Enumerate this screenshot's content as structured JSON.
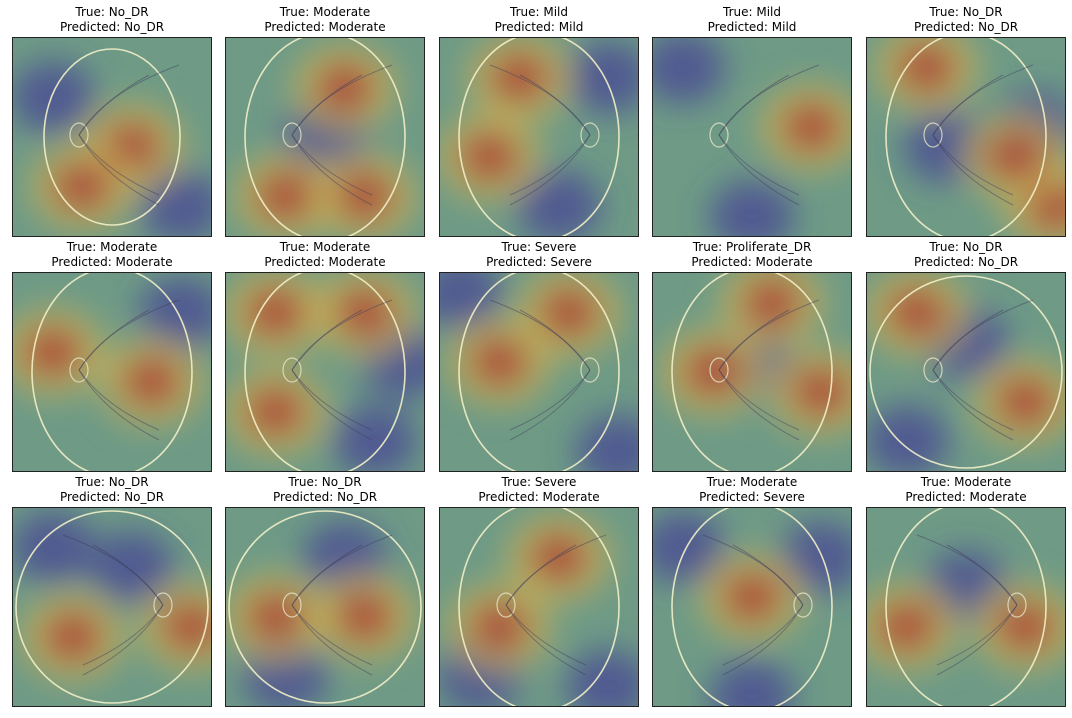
{
  "figure": {
    "true_prefix": "True: ",
    "pred_prefix": "Predicted: ",
    "panels": [
      {
        "true": "No_DR",
        "predicted": "No_DR",
        "fundus": "circle-small",
        "disc": "left",
        "hot": [
          [
            0.6,
            0.55
          ],
          [
            0.35,
            0.75
          ]
        ],
        "cool": [
          [
            0.85,
            0.85
          ],
          [
            0.2,
            0.3
          ]
        ]
      },
      {
        "true": "Moderate",
        "predicted": "Moderate",
        "fundus": "oval",
        "disc": "left",
        "hot": [
          [
            0.6,
            0.25
          ],
          [
            0.3,
            0.8
          ],
          [
            0.7,
            0.8
          ]
        ],
        "cool": [
          [
            0.5,
            0.5
          ]
        ]
      },
      {
        "true": "Mild",
        "predicted": "Mild",
        "fundus": "oval",
        "disc": "right",
        "hot": [
          [
            0.4,
            0.2
          ],
          [
            0.25,
            0.6
          ]
        ],
        "cool": [
          [
            0.6,
            0.85
          ],
          [
            0.85,
            0.2
          ]
        ]
      },
      {
        "true": "Mild",
        "predicted": "Mild",
        "fundus": "square",
        "disc": "left",
        "hot": [
          [
            0.8,
            0.45
          ]
        ],
        "cool": [
          [
            0.15,
            0.15
          ],
          [
            0.5,
            0.9
          ]
        ]
      },
      {
        "true": "No_DR",
        "predicted": "No_DR",
        "fundus": "oval",
        "disc": "left",
        "hot": [
          [
            0.3,
            0.15
          ],
          [
            0.95,
            0.85
          ],
          [
            0.75,
            0.6
          ]
        ],
        "cool": [
          [
            0.4,
            0.55
          ],
          [
            0.85,
            0.45
          ]
        ]
      },
      {
        "true": "Moderate",
        "predicted": "Moderate",
        "fundus": "oval",
        "disc": "left",
        "hot": [
          [
            0.2,
            0.4
          ],
          [
            0.7,
            0.55
          ]
        ],
        "cool": [
          [
            0.85,
            0.2
          ]
        ]
      },
      {
        "true": "Moderate",
        "predicted": "Moderate",
        "fundus": "oval",
        "disc": "left",
        "hot": [
          [
            0.25,
            0.7
          ],
          [
            0.7,
            0.2
          ],
          [
            0.25,
            0.2
          ]
        ],
        "cool": [
          [
            0.9,
            0.45
          ],
          [
            0.75,
            0.85
          ]
        ]
      },
      {
        "true": "Severe",
        "predicted": "Severe",
        "fundus": "oval",
        "disc": "right",
        "hot": [
          [
            0.3,
            0.45
          ],
          [
            0.65,
            0.2
          ]
        ],
        "cool": [
          [
            0.1,
            0.1
          ],
          [
            0.9,
            0.9
          ]
        ]
      },
      {
        "true": "Proliferate_DR",
        "predicted": "Moderate",
        "fundus": "oval",
        "disc": "left",
        "hot": [
          [
            0.3,
            0.5
          ],
          [
            0.85,
            0.6
          ],
          [
            0.6,
            0.15
          ]
        ],
        "cool": [
          [
            0.5,
            0.45
          ]
        ]
      },
      {
        "true": "No_DR",
        "predicted": "No_DR",
        "fundus": "circle",
        "disc": "left",
        "hot": [
          [
            0.8,
            0.65
          ],
          [
            0.25,
            0.2
          ]
        ],
        "cool": [
          [
            0.5,
            0.35
          ],
          [
            0.2,
            0.85
          ]
        ]
      },
      {
        "true": "No_DR",
        "predicted": "No_DR",
        "fundus": "circle",
        "disc": "right",
        "hot": [
          [
            0.3,
            0.65
          ],
          [
            0.9,
            0.6
          ]
        ],
        "cool": [
          [
            0.6,
            0.3
          ],
          [
            0.2,
            0.2
          ]
        ]
      },
      {
        "true": "No_DR",
        "predicted": "No_DR",
        "fundus": "circle",
        "disc": "left",
        "hot": [
          [
            0.25,
            0.55
          ],
          [
            0.7,
            0.55
          ]
        ],
        "cool": [
          [
            0.6,
            0.25
          ],
          [
            0.3,
            0.85
          ]
        ]
      },
      {
        "true": "Severe",
        "predicted": "Moderate",
        "fundus": "oval",
        "disc": "left",
        "hot": [
          [
            0.6,
            0.25
          ],
          [
            0.3,
            0.6
          ]
        ],
        "cool": [
          [
            0.2,
            0.85
          ],
          [
            0.85,
            0.9
          ]
        ]
      },
      {
        "true": "Moderate",
        "predicted": "Severe",
        "fundus": "oval",
        "disc": "right",
        "hot": [
          [
            0.5,
            0.45
          ]
        ],
        "cool": [
          [
            0.15,
            0.2
          ],
          [
            0.85,
            0.25
          ],
          [
            0.5,
            0.95
          ]
        ]
      },
      {
        "true": "Moderate",
        "predicted": "Moderate",
        "fundus": "oval",
        "disc": "right",
        "hot": [
          [
            0.2,
            0.6
          ],
          [
            0.8,
            0.6
          ]
        ],
        "cool": [
          [
            0.5,
            0.4
          ]
        ]
      }
    ]
  }
}
